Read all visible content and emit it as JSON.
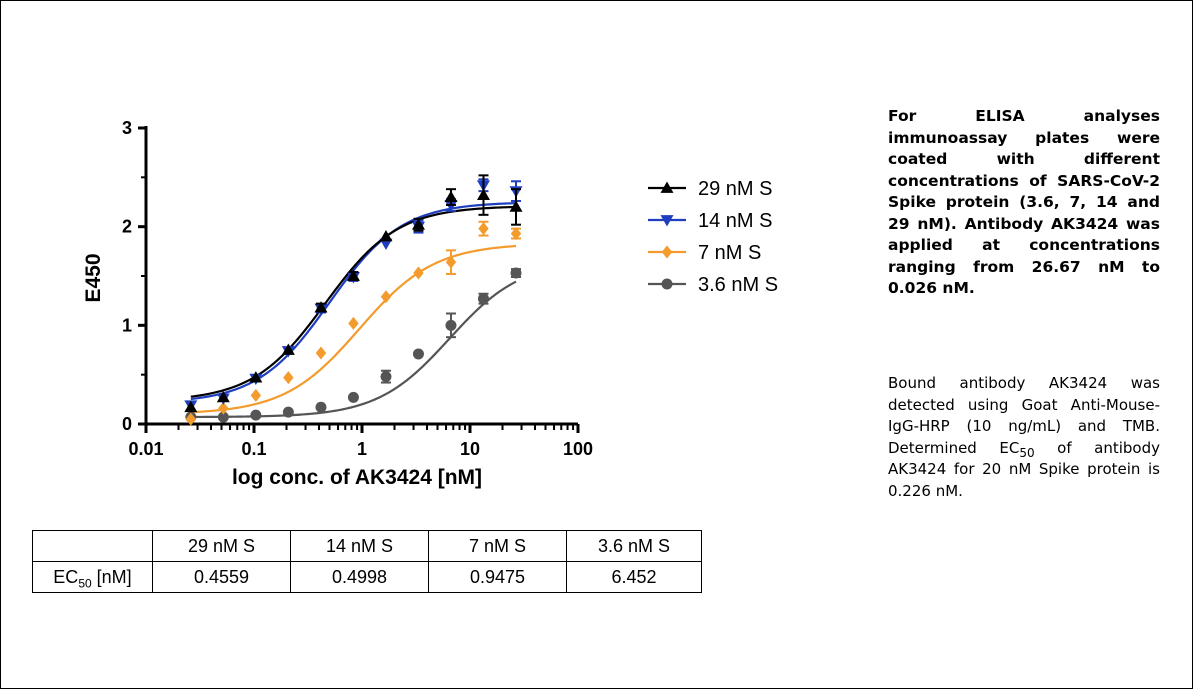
{
  "chart_data": {
    "type": "scatter",
    "xlabel": "log conc. of AK3424 [nM]",
    "ylabel": "E450",
    "xscale": "log",
    "xlim": [
      0.01,
      100
    ],
    "ylim": [
      0,
      3
    ],
    "xticks": [
      "0.01",
      "0.1",
      "1",
      "10",
      "100"
    ],
    "yticks": [
      "0",
      "1",
      "2",
      "3"
    ],
    "legend_position": "right",
    "x": [
      0.026,
      0.052,
      0.104,
      0.208,
      0.417,
      0.833,
      1.667,
      3.333,
      6.667,
      13.33,
      26.67
    ],
    "series": [
      {
        "name": "29 nM S",
        "color": "#000000",
        "marker": "triangle-up",
        "values": [
          0.17,
          0.27,
          0.47,
          0.75,
          1.18,
          1.5,
          1.9,
          2.02,
          2.3,
          2.32,
          2.2
        ],
        "errors": [
          0.0,
          0.0,
          0.0,
          0.0,
          0.04,
          0.04,
          0.0,
          0.06,
          0.08,
          0.2,
          0.18
        ],
        "fit": {
          "bottom": 0.23,
          "top": 2.21,
          "ec50": 0.4559,
          "hill": 1.3
        }
      },
      {
        "name": "14 nM S",
        "color": "#1f3fbf",
        "marker": "triangle-down",
        "values": [
          0.19,
          0.26,
          0.46,
          0.74,
          1.17,
          1.49,
          1.83,
          2.0,
          2.22,
          2.42,
          2.36
        ],
        "errors": [
          0.0,
          0.0,
          0.0,
          0.0,
          0.04,
          0.04,
          0.0,
          0.06,
          0.06,
          0.06,
          0.1
        ],
        "fit": {
          "bottom": 0.21,
          "top": 2.25,
          "ec50": 0.4998,
          "hill": 1.3
        }
      },
      {
        "name": "7 nM S",
        "color": "#f39b2c",
        "marker": "diamond",
        "values": [
          0.05,
          0.16,
          0.29,
          0.47,
          0.72,
          1.02,
          1.29,
          1.53,
          1.64,
          1.98,
          1.93
        ],
        "errors": [
          0.0,
          0.0,
          0.0,
          0.0,
          0.0,
          0.0,
          0.0,
          0.0,
          0.12,
          0.07,
          0.05
        ],
        "fit": {
          "bottom": 0.1,
          "top": 1.83,
          "ec50": 0.9475,
          "hill": 1.25
        }
      },
      {
        "name": "3.6 nM S",
        "color": "#555555",
        "marker": "circle",
        "values": [
          0.07,
          0.07,
          0.09,
          0.12,
          0.17,
          0.27,
          0.48,
          0.71,
          1.0,
          1.27,
          1.53
        ],
        "errors": [
          0.0,
          0.0,
          0.0,
          0.0,
          0.0,
          0.0,
          0.06,
          0.0,
          0.12,
          0.05,
          0.04
        ],
        "fit": {
          "bottom": 0.07,
          "top": 1.66,
          "ec50": 6.452,
          "hill": 1.3
        }
      }
    ]
  },
  "table": {
    "headers": [
      "",
      "29 nM S",
      "14 nM S",
      "7 nM S",
      "3.6 nM S"
    ],
    "row_label_main": "EC",
    "row_label_sub": "50",
    "row_label_unit": " [nM]",
    "values": [
      "0.4559",
      "0.4998",
      "0.9475",
      "6.452"
    ]
  },
  "description": {
    "bold_text": "For ELISA analyses immunoassay plates were coated with different concentrations of SARS-CoV-2 Spike protein (3.6, 7, 14 and 29 nM). Antibody AK3424 was applied at concentrations ranging from 26.67 nM to 0.026 nM.",
    "normal_before": "Bound antibody AK3424 was detected using Goat Anti-Mouse-IgG-HRP (10 ng/mL) and TMB. Determined EC",
    "normal_sub": "50",
    "normal_after": " of antibody AK3424 for 20 nM Spike protein is 0.226 nM."
  }
}
